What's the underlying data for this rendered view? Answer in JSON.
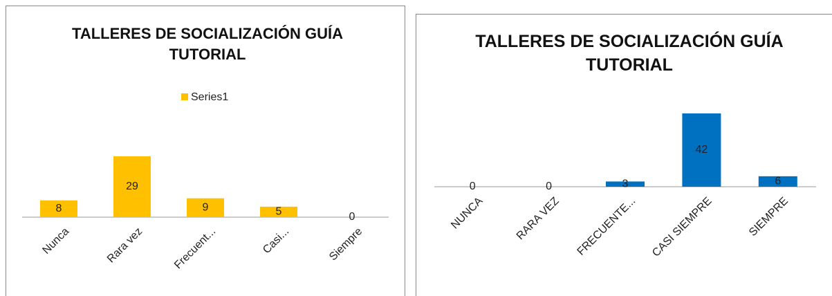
{
  "chart_data": [
    {
      "type": "bar",
      "title": "TALLERES DE SOCIALIZACIÓN GUÍA TUTORIAL",
      "categories": [
        "Nunca",
        "Rara vez",
        "Frecuent...",
        "Casi...",
        "Siempre"
      ],
      "series": [
        {
          "name": "Series1",
          "color": "#ffc000",
          "values": [
            8,
            29,
            9,
            5,
            0
          ]
        }
      ],
      "legend": "top"
    },
    {
      "type": "bar",
      "title": "TALLERES DE SOCIALIZACIÓN GUÍA TUTORIAL",
      "categories": [
        "NUNCA",
        "RARA VEZ",
        "FRECUENTE...",
        "CASI SIEMPRE",
        "SIEMPRE"
      ],
      "series": [
        {
          "color": "#0070c0",
          "values": [
            0,
            0,
            3,
            42,
            6
          ]
        }
      ]
    }
  ]
}
